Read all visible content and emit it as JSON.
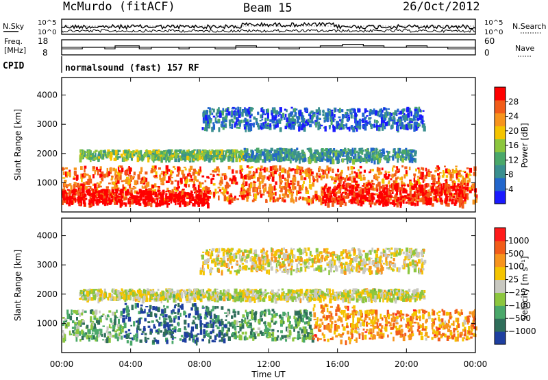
{
  "header": {
    "station": "McMurdo (fitACF)",
    "beam": "Beam 15",
    "date": "26/Oct/2012"
  },
  "noise_panel": {
    "left_label": "N.Sky",
    "right_label": "N.Search",
    "left_ticks": [
      "10^5",
      "10^0"
    ],
    "right_ticks": [
      "10^5",
      "10^0"
    ]
  },
  "freq_panel": {
    "left_label_line1": "Freq.",
    "left_label_line2": "[MHz]",
    "right_label": "Nave",
    "left_ticks": [
      "18",
      "8"
    ],
    "right_ticks": [
      "60",
      "0"
    ],
    "freq_steps_utc": [
      0,
      1.2,
      2.5,
      3.1,
      4.5,
      5.2,
      6.8,
      7.4,
      8.9,
      10.1,
      11.3,
      12.6,
      13.8,
      15.0,
      16.3,
      17.5,
      18.7,
      20.0,
      21.2,
      22.4,
      24.0
    ],
    "freq_values": [
      12,
      13,
      12,
      14,
      12,
      13,
      12,
      13,
      12,
      14,
      13,
      12,
      13,
      14,
      15,
      14,
      13,
      14,
      13,
      12
    ]
  },
  "cpid_panel": {
    "label": "CPID",
    "text": "normalsound (fast) 157 RF"
  },
  "chart_data": [
    {
      "type": "heatmap",
      "xlabel": "Time UT",
      "ylabel": "Slant Range [km]",
      "xlim": [
        0,
        24
      ],
      "ylim": [
        0,
        4600
      ],
      "x_ticks": [
        "00:00",
        "04:00",
        "08:00",
        "12:00",
        "16:00",
        "20:00",
        "00:00"
      ],
      "x_tick_values": [
        0,
        4,
        8,
        12,
        16,
        20,
        24
      ],
      "y_ticks": [
        "1000",
        "2000",
        "3000",
        "4000"
      ],
      "y_tick_values": [
        1000,
        2000,
        3000,
        4000
      ],
      "colorbar": {
        "label": "Power [dB]",
        "ticks": [
          "4",
          "8",
          "12",
          "16",
          "20",
          "24",
          "28"
        ],
        "tick_values": [
          4,
          8,
          12,
          16,
          20,
          24,
          28
        ],
        "range": [
          0,
          32
        ],
        "colors": [
          "#1a1aff",
          "#2266cc",
          "#3a8f8f",
          "#4aa86a",
          "#8cc63e",
          "#f4c400",
          "#f7941d",
          "#f25c19",
          "#ff0000"
        ]
      },
      "scatter_bands": [
        {
          "x0": 0.0,
          "x1": 24.0,
          "r0": 400,
          "r1": 1600,
          "level": 0.8
        },
        {
          "x0": 1.0,
          "x1": 10.5,
          "r0": 1850,
          "r1": 2150,
          "level": 0.45
        },
        {
          "x0": 10.5,
          "x1": 20.5,
          "r0": 1800,
          "r1": 2200,
          "level": 0.3
        },
        {
          "x0": 8.0,
          "x1": 21.0,
          "r0": 2900,
          "r1": 3600,
          "level": 0.2
        },
        {
          "x0": 15.0,
          "x1": 23.5,
          "r0": 300,
          "r1": 1000,
          "level": 0.95
        },
        {
          "x0": 0.0,
          "x1": 8.5,
          "r0": 300,
          "r1": 800,
          "level": 1.0
        }
      ]
    },
    {
      "type": "heatmap",
      "xlabel": "Time UT",
      "ylabel": "Slant Range [km]",
      "xlim": [
        0,
        24
      ],
      "ylim": [
        0,
        4600
      ],
      "x_ticks": [
        "00:00",
        "04:00",
        "08:00",
        "12:00",
        "16:00",
        "20:00",
        "00:00"
      ],
      "x_tick_values": [
        0,
        4,
        8,
        12,
        16,
        20,
        24
      ],
      "y_ticks": [
        "1000",
        "2000",
        "3000",
        "4000"
      ],
      "y_tick_values": [
        1000,
        2000,
        3000,
        4000
      ],
      "colorbar": {
        "label": "Velocity [m s⁻¹]",
        "ticks": [
          "1000",
          "500",
          "100",
          "25",
          "−25",
          "−100",
          "−500",
          "−1000"
        ],
        "colors": [
          "#1e3fa0",
          "#2f6e5a",
          "#4aa86a",
          "#8cc63e",
          "#c8c8c0",
          "#f4c400",
          "#f7941d",
          "#f25c19",
          "#ff1a1a"
        ]
      },
      "scatter_bands": [
        {
          "x0": 0.0,
          "x1": 3.5,
          "r0": 450,
          "r1": 1500,
          "level": 0.35
        },
        {
          "x0": 3.5,
          "x1": 9.5,
          "r0": 400,
          "r1": 1700,
          "level": 0.15
        },
        {
          "x0": 9.5,
          "x1": 14.5,
          "r0": 500,
          "r1": 1500,
          "level": 0.3
        },
        {
          "x0": 14.5,
          "x1": 17.0,
          "r0": 400,
          "r1": 1700,
          "level": 0.72
        },
        {
          "x0": 17.0,
          "x1": 24.0,
          "r0": 500,
          "r1": 1500,
          "level": 0.72
        },
        {
          "x0": 1.0,
          "x1": 21.0,
          "r0": 1850,
          "r1": 2200,
          "level": 0.5
        },
        {
          "x0": 8.0,
          "x1": 21.0,
          "r0": 2800,
          "r1": 3600,
          "level": 0.55
        }
      ]
    }
  ]
}
